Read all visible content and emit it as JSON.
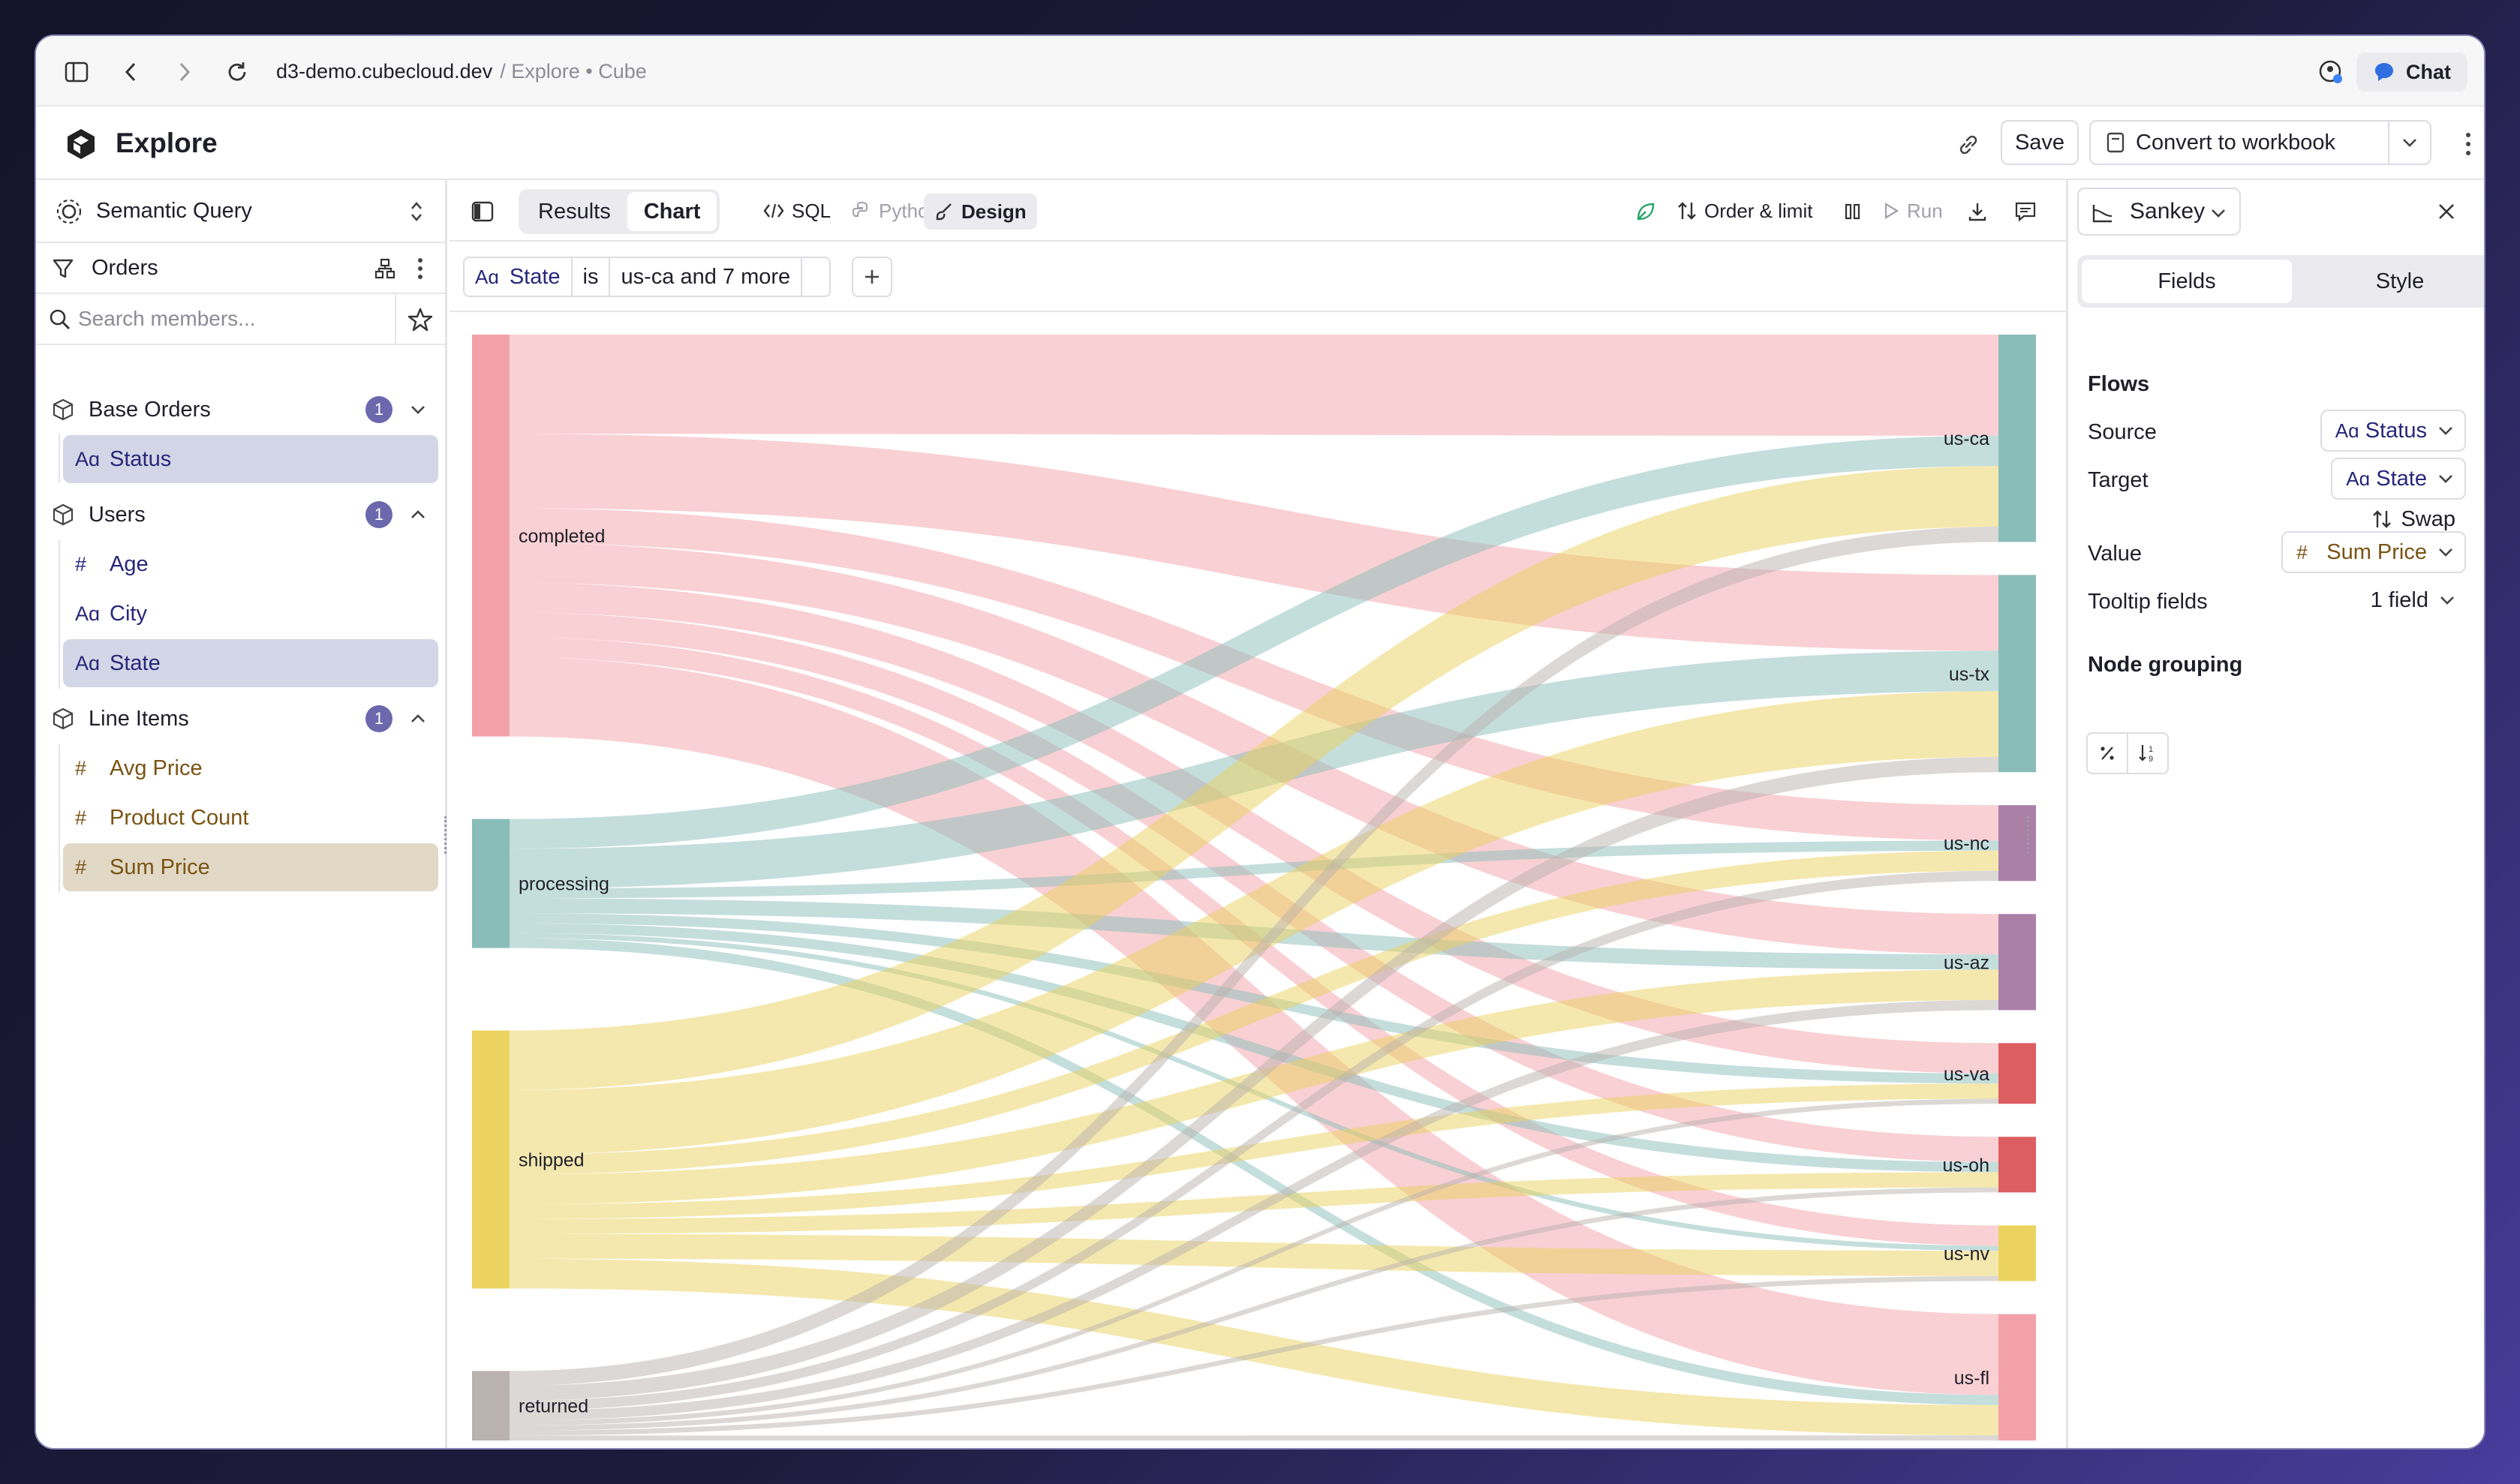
{
  "browser": {
    "host": "d3-demo.cubecloud.dev",
    "path": " / Explore • Cube",
    "chat_label": "Chat"
  },
  "app": {
    "title": "Explore",
    "save_label": "Save",
    "convert_label": "Convert to workbook"
  },
  "sidebar": {
    "query_type": "Semantic Query",
    "cube": "Orders",
    "search_placeholder": "Search members...",
    "groups": [
      {
        "name": "Base Orders",
        "count": "1",
        "members": [
          {
            "name": "Status",
            "kind": "dimension",
            "selected": true
          }
        ]
      },
      {
        "name": "Users",
        "count": "1",
        "members": [
          {
            "name": "Age",
            "kind": "measure-number"
          },
          {
            "name": "City",
            "kind": "dimension"
          },
          {
            "name": "State",
            "kind": "dimension",
            "selected": true
          }
        ]
      },
      {
        "name": "Line Items",
        "count": "1",
        "members": [
          {
            "name": "Avg Price",
            "kind": "measure"
          },
          {
            "name": "Product Count",
            "kind": "measure"
          },
          {
            "name": "Sum Price",
            "kind": "measure",
            "selected": true
          }
        ]
      }
    ]
  },
  "toolbar": {
    "results": "Results",
    "chart": "Chart",
    "sql": "SQL",
    "python": "Python",
    "design": "Design",
    "order_limit": "Order & limit",
    "run": "Run"
  },
  "filter": {
    "member": "State",
    "operator": "is",
    "value": "us-ca and 7 more"
  },
  "chart_data": {
    "type": "sankey",
    "source_field": "Status",
    "target_field": "State",
    "value_field": "Sum Price",
    "sources": [
      {
        "name": "completed",
        "color": "#f3a1a9"
      },
      {
        "name": "processing",
        "color": "#89bdb9"
      },
      {
        "name": "shipped",
        "color": "#ecd25e"
      },
      {
        "name": "returned",
        "color": "#bab2ae"
      }
    ],
    "targets": [
      {
        "name": "us-ca",
        "color": "#89bdb9"
      },
      {
        "name": "us-tx",
        "color": "#89bdb9"
      },
      {
        "name": "us-nc",
        "color": "#aa7fa8"
      },
      {
        "name": "us-az",
        "color": "#aa7fa8"
      },
      {
        "name": "us-va",
        "color": "#dc5e60"
      },
      {
        "name": "us-oh",
        "color": "#dc5e60"
      },
      {
        "name": "us-nv",
        "color": "#ecd25e"
      },
      {
        "name": "us-fl",
        "color": "#f3a1a9"
      }
    ],
    "links": [
      {
        "source": "completed",
        "target": "us-ca",
        "value": 20
      },
      {
        "source": "completed",
        "target": "us-tx",
        "value": 15
      },
      {
        "source": "completed",
        "target": "us-nc",
        "value": 7
      },
      {
        "source": "completed",
        "target": "us-az",
        "value": 8
      },
      {
        "source": "completed",
        "target": "us-va",
        "value": 6
      },
      {
        "source": "completed",
        "target": "us-oh",
        "value": 5
      },
      {
        "source": "completed",
        "target": "us-nv",
        "value": 4
      },
      {
        "source": "completed",
        "target": "us-fl",
        "value": 16
      },
      {
        "source": "processing",
        "target": "us-ca",
        "value": 6
      },
      {
        "source": "processing",
        "target": "us-tx",
        "value": 8
      },
      {
        "source": "processing",
        "target": "us-nc",
        "value": 2
      },
      {
        "source": "processing",
        "target": "us-az",
        "value": 3
      },
      {
        "source": "processing",
        "target": "us-va",
        "value": 2
      },
      {
        "source": "processing",
        "target": "us-oh",
        "value": 2
      },
      {
        "source": "processing",
        "target": "us-nv",
        "value": 1
      },
      {
        "source": "processing",
        "target": "us-fl",
        "value": 2
      },
      {
        "source": "shipped",
        "target": "us-ca",
        "value": 12
      },
      {
        "source": "shipped",
        "target": "us-tx",
        "value": 13
      },
      {
        "source": "shipped",
        "target": "us-nc",
        "value": 4
      },
      {
        "source": "shipped",
        "target": "us-az",
        "value": 6
      },
      {
        "source": "shipped",
        "target": "us-va",
        "value": 3
      },
      {
        "source": "shipped",
        "target": "us-oh",
        "value": 3
      },
      {
        "source": "shipped",
        "target": "us-nv",
        "value": 5
      },
      {
        "source": "shipped",
        "target": "us-fl",
        "value": 6
      },
      {
        "source": "returned",
        "target": "us-ca",
        "value": 3
      },
      {
        "source": "returned",
        "target": "us-tx",
        "value": 3
      },
      {
        "source": "returned",
        "target": "us-nc",
        "value": 2
      },
      {
        "source": "returned",
        "target": "us-az",
        "value": 2
      },
      {
        "source": "returned",
        "target": "us-va",
        "value": 1
      },
      {
        "source": "returned",
        "target": "us-oh",
        "value": 1
      },
      {
        "source": "returned",
        "target": "us-nv",
        "value": 1
      },
      {
        "source": "returned",
        "target": "us-fl",
        "value": 1
      }
    ]
  },
  "panel": {
    "chart_type": "Sankey",
    "tab_fields": "Fields",
    "tab_style": "Style",
    "flows_label": "Flows",
    "source_label": "Source",
    "source_value": "Status",
    "target_label": "Target",
    "target_value": "State",
    "swap_label": "Swap",
    "value_label": "Value",
    "value_value": "Sum Price",
    "tooltip_label": "Tooltip fields",
    "tooltip_value": "1 field",
    "node_grouping_label": "Node grouping"
  }
}
